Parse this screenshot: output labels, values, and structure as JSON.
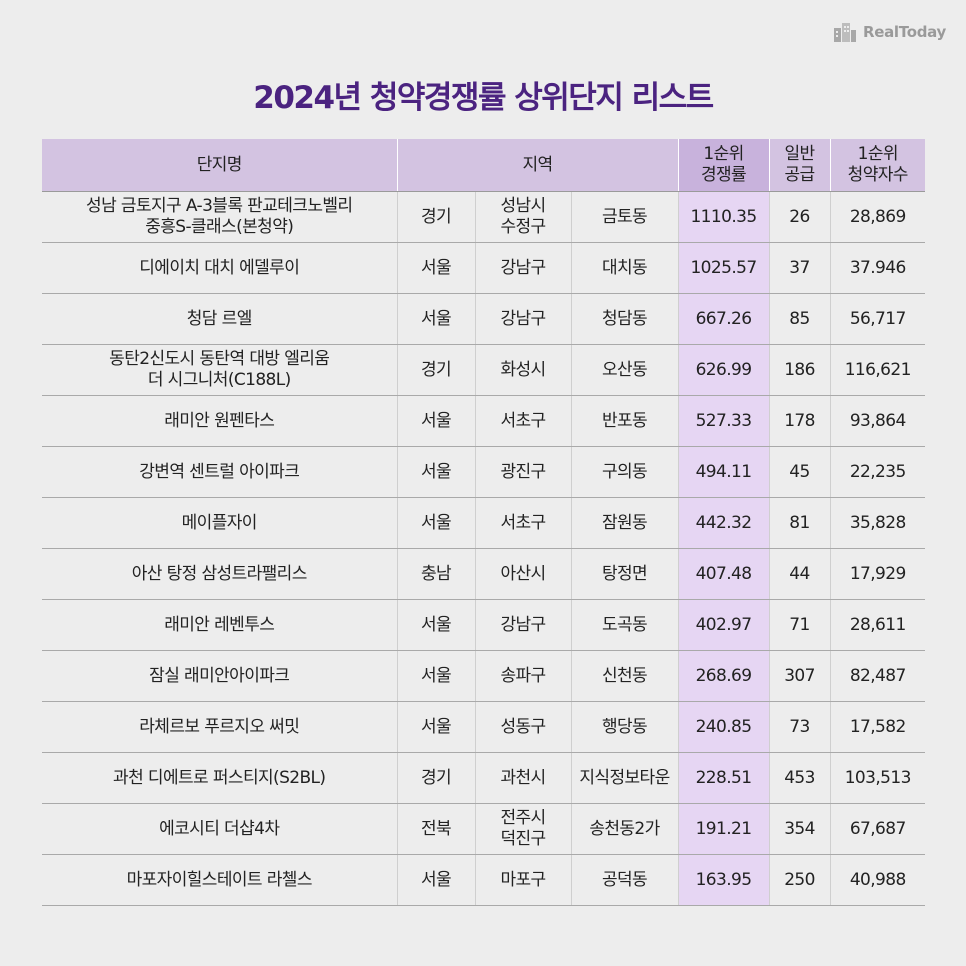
{
  "brand": {
    "name": "RealToday"
  },
  "title": "2024년 청약경쟁률 상위단지 리스트",
  "table": {
    "headers": {
      "name": "단지명",
      "region": "지역",
      "rate": "1순위\n경쟁률",
      "supply": "일반\n공급",
      "applicants": "1순위\n청약자수"
    },
    "rows": [
      {
        "name": "성남 금토지구 A-3블록 판교테크노벨리\n중흥S-클래스(본청약)",
        "r1": "경기",
        "r2": "성남시\n수정구",
        "r3": "금토동",
        "rate": "1110.35",
        "supply": "26",
        "applicants": "28,869"
      },
      {
        "name": "디에이치 대치 에델루이",
        "r1": "서울",
        "r2": "강남구",
        "r3": "대치동",
        "rate": "1025.57",
        "supply": "37",
        "applicants": "37.946"
      },
      {
        "name": "청담 르엘",
        "r1": "서울",
        "r2": "강남구",
        "r3": "청담동",
        "rate": "667.26",
        "supply": "85",
        "applicants": "56,717"
      },
      {
        "name": "동탄2신도시 동탄역 대방 엘리움\n더 시그니처(C188L)",
        "r1": "경기",
        "r2": "화성시",
        "r3": "오산동",
        "rate": "626.99",
        "supply": "186",
        "applicants": "116,621"
      },
      {
        "name": "래미안 원펜타스",
        "r1": "서울",
        "r2": "서초구",
        "r3": "반포동",
        "rate": "527.33",
        "supply": "178",
        "applicants": "93,864"
      },
      {
        "name": "강변역 센트럴 아이파크",
        "r1": "서울",
        "r2": "광진구",
        "r3": "구의동",
        "rate": "494.11",
        "supply": "45",
        "applicants": "22,235"
      },
      {
        "name": "메이플자이",
        "r1": "서울",
        "r2": "서초구",
        "r3": "잠원동",
        "rate": "442.32",
        "supply": "81",
        "applicants": "35,828"
      },
      {
        "name": "아산 탕정 삼성트라팰리스",
        "r1": "충남",
        "r2": "아산시",
        "r3": "탕정면",
        "rate": "407.48",
        "supply": "44",
        "applicants": "17,929"
      },
      {
        "name": "래미안 레벤투스",
        "r1": "서울",
        "r2": "강남구",
        "r3": "도곡동",
        "rate": "402.97",
        "supply": "71",
        "applicants": "28,611"
      },
      {
        "name": "잠실 래미안아이파크",
        "r1": "서울",
        "r2": "송파구",
        "r3": "신천동",
        "rate": "268.69",
        "supply": "307",
        "applicants": "82,487"
      },
      {
        "name": "라체르보 푸르지오 써밋",
        "r1": "서울",
        "r2": "성동구",
        "r3": "행당동",
        "rate": "240.85",
        "supply": "73",
        "applicants": "17,582"
      },
      {
        "name": "과천 디에트로 퍼스티지(S2BL)",
        "r1": "경기",
        "r2": "과천시",
        "r3": "지식정보타운",
        "rate": "228.51",
        "supply": "453",
        "applicants": "103,513"
      },
      {
        "name": "에코시티 더샵4차",
        "r1": "전북",
        "r2": "전주시\n덕진구",
        "r3": "송천동2가",
        "rate": "191.21",
        "supply": "354",
        "applicants": "67,687"
      },
      {
        "name": "마포자이힐스테이트 라첼스",
        "r1": "서울",
        "r2": "마포구",
        "r3": "공덕동",
        "rate": "163.95",
        "supply": "250",
        "applicants": "40,988"
      }
    ]
  }
}
